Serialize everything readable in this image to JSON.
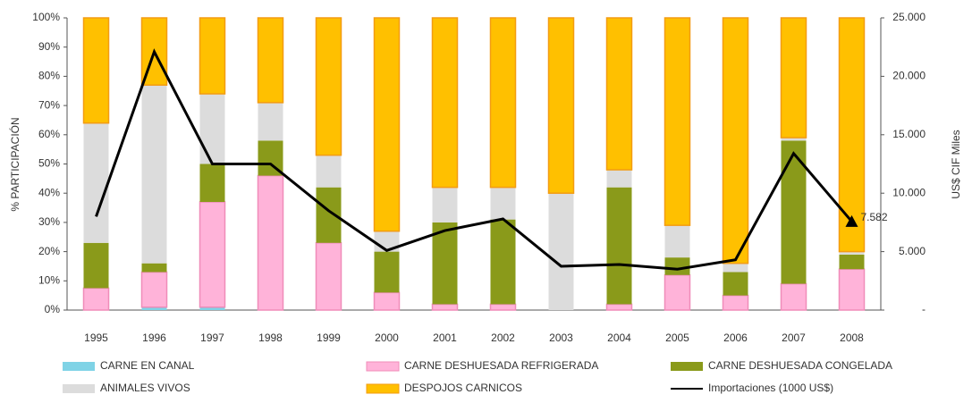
{
  "chart_data": {
    "type": "stacked_bar_line",
    "y_label": "% PARTICIPACIÓN",
    "y2_label": "US$ CIF Miles",
    "categories": [
      "1995",
      "1996",
      "1997",
      "1998",
      "1999",
      "2000",
      "2001",
      "2002",
      "2003",
      "2004",
      "2005",
      "2006",
      "2007",
      "2008"
    ],
    "ylim": [
      0,
      100
    ],
    "yticks": [
      {
        "value": 0,
        "label": "0%"
      },
      {
        "value": 10,
        "label": "10%"
      },
      {
        "value": 20,
        "label": "20%"
      },
      {
        "value": 30,
        "label": "30%"
      },
      {
        "value": 40,
        "label": "40%"
      },
      {
        "value": 50,
        "label": "50%"
      },
      {
        "value": 60,
        "label": "60%"
      },
      {
        "value": 70,
        "label": "70%"
      },
      {
        "value": 80,
        "label": "80%"
      },
      {
        "value": 90,
        "label": "90%"
      },
      {
        "value": 100,
        "label": "100%"
      }
    ],
    "y2lim": [
      0,
      25000
    ],
    "y2ticks": [
      {
        "value": 0,
        "label": "-"
      },
      {
        "value": 5000,
        "label": "5.000"
      },
      {
        "value": 10000,
        "label": "10.000"
      },
      {
        "value": 15000,
        "label": "15.000"
      },
      {
        "value": 20000,
        "label": "20.000"
      },
      {
        "value": 25000,
        "label": "25.000"
      }
    ],
    "series": [
      {
        "name": "CARNE EN CANAL",
        "color": "#7fd3e6",
        "values": [
          0,
          1,
          1,
          0,
          0,
          0,
          0,
          0,
          0,
          0,
          0,
          0,
          0,
          0
        ]
      },
      {
        "name": "CARNE DESHUESADA REFRIGERADA",
        "color": "#ffb3d9",
        "values": [
          7.5,
          12,
          36,
          46,
          23,
          6,
          2,
          2,
          0,
          2,
          12,
          5,
          9,
          14
        ]
      },
      {
        "name": "CARNE DESHUESADA CONGELADA",
        "color": "#8a9a1a",
        "values": [
          15.5,
          3,
          13,
          12,
          19,
          14,
          28,
          29,
          0,
          40,
          6,
          8,
          49,
          5
        ]
      },
      {
        "name": "ANIMALES VIVOS",
        "color": "#dcdcdc",
        "values": [
          41,
          61,
          24,
          13,
          11,
          7,
          12,
          11,
          40,
          6,
          11,
          3,
          1,
          1
        ]
      },
      {
        "name": "DESPOJOS CARNICOS",
        "color": "#ffc000",
        "values": [
          36,
          23,
          26,
          29,
          47,
          73,
          58,
          58,
          60,
          52,
          71,
          84,
          41,
          80
        ]
      },
      {
        "name": "Importaciones (1000 US$)",
        "color": "#000000",
        "axis": "y2",
        "type": "line",
        "values": [
          8000,
          22100,
          12500,
          12500,
          8500,
          5100,
          6800,
          7800,
          3750,
          3900,
          3500,
          4300,
          13400,
          7582
        ],
        "value_labels": [
          null,
          null,
          null,
          null,
          null,
          null,
          null,
          null,
          null,
          null,
          null,
          null,
          null,
          "7.582"
        ]
      }
    ]
  }
}
